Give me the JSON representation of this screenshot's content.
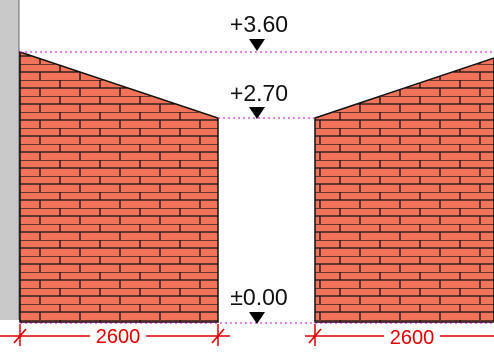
{
  "levels": [
    {
      "label": "+3.60",
      "value": 3.6
    },
    {
      "label": "+2.70",
      "value": 2.7
    },
    {
      "label": "±0.00",
      "value": 0.0
    }
  ],
  "dimensions": [
    {
      "label": "2600",
      "value": 2600
    },
    {
      "label": "2600",
      "value": 2600
    }
  ],
  "colors": {
    "brick_fill": "#f0735a",
    "mortar": "#111111",
    "dimension": "#e00000",
    "level_line": "#d000d0",
    "marker": "#000000",
    "wall_strip": "#c8c8c8"
  },
  "icons": {
    "level_marker": "down-triangle-icon",
    "dimension_tick": "slash-tick-icon"
  }
}
